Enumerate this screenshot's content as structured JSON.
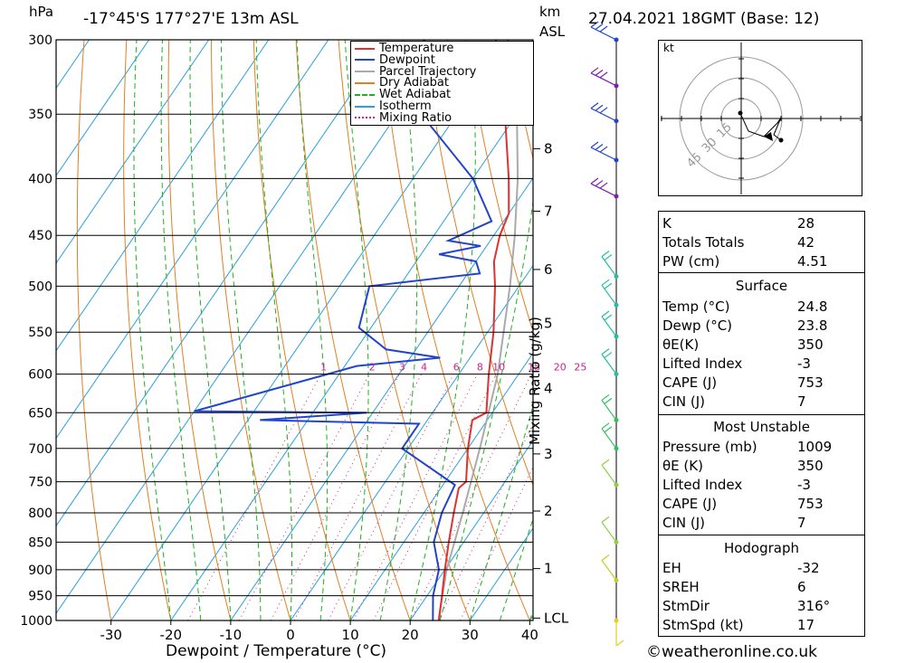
{
  "header": {
    "location": "-17°45'S  177°27'E  13m  ASL",
    "time": "27.04.2021  18GMT  (Base: 12)",
    "left_unit": "hPa",
    "km_label": "km",
    "asl_label": "ASL"
  },
  "footer": {
    "copyright": "©weatheronline.co.uk"
  },
  "legend": [
    {
      "label": "Temperature",
      "color": "#e03030",
      "style": "solid"
    },
    {
      "label": "Dewpoint",
      "color": "#2244cc",
      "style": "solid"
    },
    {
      "label": "Parcel Trajectory",
      "color": "#aaaaaa",
      "style": "solid"
    },
    {
      "label": "Dry Adiabat",
      "color": "#e08020",
      "style": "solid"
    },
    {
      "label": "Wet Adiabat",
      "color": "#20b020",
      "style": "dashed"
    },
    {
      "label": "Isotherm",
      "color": "#2aa0e0",
      "style": "solid"
    },
    {
      "label": "Mixing Ratio",
      "color": "#d0208a",
      "style": "dotted"
    }
  ],
  "chart_data": {
    "type": "skew-t",
    "xlabel": "Dewpoint / Temperature (°C)",
    "ylabel_right": "Mixing Ratio (g/kg)",
    "pressure_levels": [
      300,
      350,
      400,
      450,
      500,
      550,
      600,
      650,
      700,
      750,
      800,
      850,
      900,
      950,
      1000
    ],
    "temp_ticks": [
      -30,
      -20,
      -10,
      0,
      10,
      20,
      30,
      40
    ],
    "km_ticks": [
      {
        "km": "8",
        "p": 376
      },
      {
        "km": "7",
        "p": 428
      },
      {
        "km": "6",
        "p": 483
      },
      {
        "km": "5",
        "p": 540
      },
      {
        "km": "4",
        "p": 618
      },
      {
        "km": "3",
        "p": 708
      },
      {
        "km": "2",
        "p": 797
      },
      {
        "km": "1",
        "p": 898
      },
      {
        "km": "LCL",
        "p": 995
      }
    ],
    "mixing_ratio_labels": [
      "1",
      "2",
      "3",
      "4",
      "6",
      "8",
      "10",
      "15",
      "20",
      "25"
    ],
    "temperature": [
      {
        "p": 1000,
        "t": 24.8
      },
      {
        "p": 950,
        "t": 22.5
      },
      {
        "p": 900,
        "t": 20.0
      },
      {
        "p": 850,
        "t": 17.5
      },
      {
        "p": 800,
        "t": 15.0
      },
      {
        "p": 760,
        "t": 13.0
      },
      {
        "p": 750,
        "t": 13.5
      },
      {
        "p": 700,
        "t": 10.0
      },
      {
        "p": 660,
        "t": 7.5
      },
      {
        "p": 650,
        "t": 9.0
      },
      {
        "p": 600,
        "t": 5.0
      },
      {
        "p": 550,
        "t": 1.0
      },
      {
        "p": 500,
        "t": -4.0
      },
      {
        "p": 475,
        "t": -7.0
      },
      {
        "p": 450,
        "t": -9.0
      },
      {
        "p": 430,
        "t": -10.0
      },
      {
        "p": 400,
        "t": -14.0
      },
      {
        "p": 350,
        "t": -22.0
      },
      {
        "p": 300,
        "t": -32.0
      }
    ],
    "dewpoint": [
      {
        "p": 1000,
        "t": 23.8
      },
      {
        "p": 950,
        "t": 21.0
      },
      {
        "p": 900,
        "t": 19.0
      },
      {
        "p": 850,
        "t": 15.0
      },
      {
        "p": 800,
        "t": 13.0
      },
      {
        "p": 755,
        "t": 12.0
      },
      {
        "p": 700,
        "t": -1.0
      },
      {
        "p": 665,
        "t": -1.0
      },
      {
        "p": 660,
        "t": -28.0
      },
      {
        "p": 650,
        "t": -11.0
      },
      {
        "p": 648,
        "t": -40.0
      },
      {
        "p": 590,
        "t": -18.0
      },
      {
        "p": 580,
        "t": -5.0
      },
      {
        "p": 570,
        "t": -15.0
      },
      {
        "p": 545,
        "t": -22.0
      },
      {
        "p": 500,
        "t": -25.0
      },
      {
        "p": 487,
        "t": -8.0
      },
      {
        "p": 475,
        "t": -10.0
      },
      {
        "p": 468,
        "t": -17.0
      },
      {
        "p": 460,
        "t": -11.0
      },
      {
        "p": 455,
        "t": -17.0
      },
      {
        "p": 437,
        "t": -12.0
      },
      {
        "p": 400,
        "t": -20.0
      },
      {
        "p": 350,
        "t": -36.0
      },
      {
        "p": 300,
        "t": -44.0
      }
    ],
    "parcel": [
      {
        "p": 1000,
        "t": 24.8
      },
      {
        "p": 995,
        "t": 24.5
      },
      {
        "p": 900,
        "t": 20.3
      },
      {
        "p": 800,
        "t": 16.5
      },
      {
        "p": 700,
        "t": 12.0
      },
      {
        "p": 600,
        "t": 6.5
      },
      {
        "p": 500,
        "t": -1.5
      },
      {
        "p": 450,
        "t": -6.5
      },
      {
        "p": 400,
        "t": -12.5
      },
      {
        "p": 350,
        "t": -20.0
      }
    ],
    "wind_barbs": [
      {
        "p": 300,
        "dir": "W",
        "speed_kt": 30,
        "color": "#2244cc"
      },
      {
        "p": 330,
        "dir": "W",
        "speed_kt": 30,
        "color": "#7a1fb0"
      },
      {
        "p": 355,
        "dir": "W",
        "speed_kt": 30,
        "color": "#2244cc"
      },
      {
        "p": 385,
        "dir": "W",
        "speed_kt": 30,
        "color": "#2244cc"
      },
      {
        "p": 415,
        "dir": "W",
        "speed_kt": 30,
        "color": "#7a1fb0"
      },
      {
        "p": 490,
        "dir": "NW",
        "speed_kt": 20,
        "color": "#22c0a0"
      },
      {
        "p": 520,
        "dir": "NW",
        "speed_kt": 20,
        "color": "#22c0a0"
      },
      {
        "p": 555,
        "dir": "NW",
        "speed_kt": 20,
        "color": "#22c0a0"
      },
      {
        "p": 600,
        "dir": "NW",
        "speed_kt": 20,
        "color": "#22c0a0"
      },
      {
        "p": 660,
        "dir": "NW",
        "speed_kt": 15,
        "color": "#30c060"
      },
      {
        "p": 700,
        "dir": "NW",
        "speed_kt": 15,
        "color": "#30c060"
      },
      {
        "p": 755,
        "dir": "NW",
        "speed_kt": 10,
        "color": "#90d040"
      },
      {
        "p": 850,
        "dir": "NW",
        "speed_kt": 10,
        "color": "#90d040"
      },
      {
        "p": 920,
        "dir": "NW",
        "speed_kt": 10,
        "color": "#c0d020"
      },
      {
        "p": 1000,
        "dir": "N",
        "speed_kt": 5,
        "color": "#e0d020"
      }
    ],
    "hodograph": {
      "unit_label": "kt",
      "ring_labels": [
        "15",
        "30",
        "45"
      ]
    }
  },
  "indices": {
    "general": [
      {
        "name": "K",
        "value": "28"
      },
      {
        "name": "Totals Totals",
        "value": "42"
      },
      {
        "name": "PW (cm)",
        "value": "4.51"
      }
    ],
    "surface": {
      "title": "Surface",
      "rows": [
        {
          "name": "Temp (°C)",
          "value": "24.8"
        },
        {
          "name": "Dewp (°C)",
          "value": "23.8"
        },
        {
          "name": "θE(K)",
          "value": "350"
        },
        {
          "name": "Lifted Index",
          "value": "-3"
        },
        {
          "name": "CAPE (J)",
          "value": "753"
        },
        {
          "name": "CIN (J)",
          "value": "7"
        }
      ]
    },
    "most_unstable": {
      "title": "Most Unstable",
      "rows": [
        {
          "name": "Pressure (mb)",
          "value": "1009"
        },
        {
          "name": "θE (K)",
          "value": "350"
        },
        {
          "name": "Lifted Index",
          "value": "-3"
        },
        {
          "name": "CAPE (J)",
          "value": "753"
        },
        {
          "name": "CIN (J)",
          "value": "7"
        }
      ]
    },
    "hodograph": {
      "title": "Hodograph",
      "rows": [
        {
          "name": "EH",
          "value": "-32"
        },
        {
          "name": "SREH",
          "value": "6"
        },
        {
          "name": "StmDir",
          "value": "316°"
        },
        {
          "name": "StmSpd (kt)",
          "value": "17"
        }
      ]
    }
  }
}
